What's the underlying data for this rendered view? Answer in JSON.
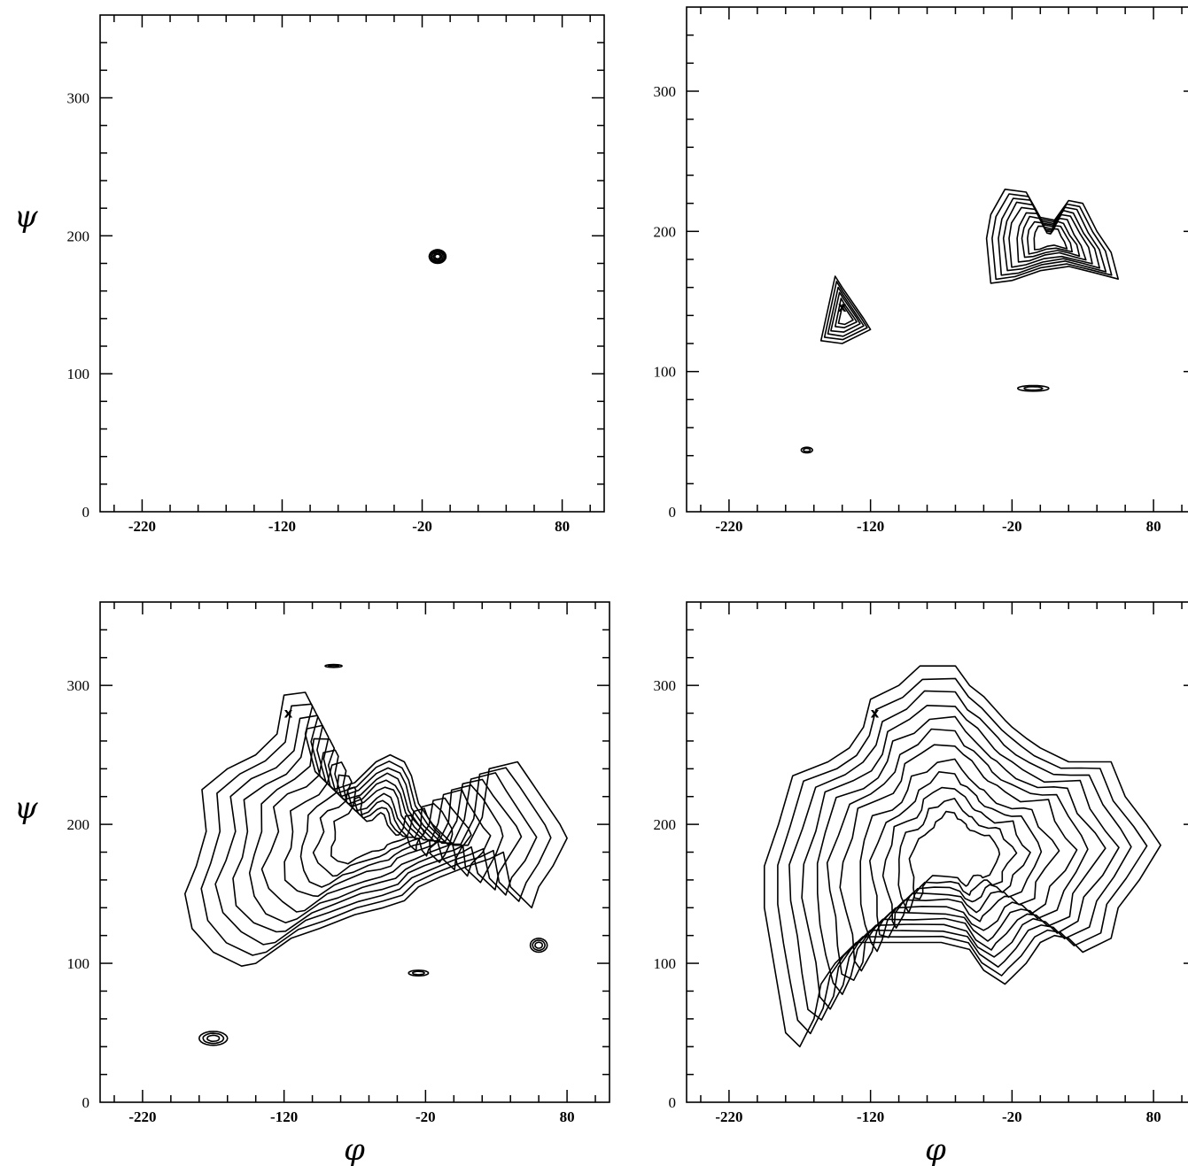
{
  "chart_data": [
    {
      "type": "contour",
      "panel": "top-left",
      "xlabel": "",
      "ylabel": "ψ",
      "xlim": [
        -250,
        110
      ],
      "ylim": [
        0,
        360
      ],
      "xticks": [
        -220,
        -120,
        -20,
        80
      ],
      "yticks": [
        0,
        100,
        200,
        300
      ],
      "grid": false,
      "markers": [],
      "regions": [
        {
          "name": "island-1",
          "levels": 5,
          "center": [
            -9,
            185
          ],
          "radius": [
            6,
            5
          ]
        }
      ]
    },
    {
      "type": "contour",
      "panel": "top-right",
      "xlabel": "",
      "ylabel": "",
      "xlim": [
        -250,
        110
      ],
      "ylim": [
        0,
        360
      ],
      "xticks": [
        -220,
        -120,
        -20,
        80
      ],
      "yticks": [
        0,
        100,
        200,
        300
      ],
      "grid": false,
      "markers": [
        {
          "symbol": "x",
          "phi": -140,
          "psi": 146
        }
      ],
      "regions": [
        {
          "name": "triangle-region",
          "levels": 6,
          "outline": [
            [
              -145,
              168
            ],
            [
              -155,
              122
            ],
            [
              -140,
              120
            ],
            [
              -120,
              130
            ],
            [
              -125,
              138
            ],
            [
              -140,
              160
            ]
          ]
        },
        {
          "name": "upper-basin",
          "levels": 9,
          "outline": [
            [
              -35,
              212
            ],
            [
              -25,
              230
            ],
            [
              -10,
              228
            ],
            [
              0,
              210
            ],
            [
              10,
              208
            ],
            [
              20,
              222
            ],
            [
              30,
              220
            ],
            [
              40,
              200
            ],
            [
              50,
              185
            ],
            [
              55,
              166
            ],
            [
              40,
              170
            ],
            [
              20,
              175
            ],
            [
              0,
              172
            ],
            [
              -20,
              165
            ],
            [
              -35,
              163
            ],
            [
              -38,
              195
            ]
          ]
        },
        {
          "name": "sliver-1",
          "levels": 2,
          "center": [
            -5,
            88
          ],
          "radius": [
            11,
            2
          ]
        },
        {
          "name": "sliver-2",
          "levels": 2,
          "center": [
            -165,
            44
          ],
          "radius": [
            4,
            2
          ]
        }
      ]
    },
    {
      "type": "contour",
      "panel": "bottom-left",
      "xlabel": "φ",
      "ylabel": "ψ",
      "xlim": [
        -250,
        110
      ],
      "ylim": [
        0,
        360
      ],
      "xticks": [
        -220,
        -120,
        -20,
        80
      ],
      "yticks": [
        0,
        100,
        200,
        300
      ],
      "grid": false,
      "markers": [
        {
          "symbol": "x",
          "phi": -117,
          "psi": 280
        }
      ],
      "regions": [
        {
          "name": "main-basin",
          "levels": 10,
          "outline": [
            [
              -120,
              293
            ],
            [
              -105,
              295
            ],
            [
              -100,
              285
            ],
            [
              -105,
              265
            ],
            [
              -98,
              238
            ],
            [
              -85,
              225
            ],
            [
              -70,
              230
            ],
            [
              -55,
              245
            ],
            [
              -45,
              250
            ],
            [
              -35,
              245
            ],
            [
              -30,
              235
            ],
            [
              -25,
              215
            ],
            [
              -15,
              200
            ],
            [
              0,
              185
            ],
            [
              10,
              185
            ],
            [
              20,
              205
            ],
            [
              25,
              240
            ],
            [
              45,
              245
            ],
            [
              55,
              230
            ],
            [
              75,
              200
            ],
            [
              80,
              190
            ],
            [
              70,
              170
            ],
            [
              60,
              155
            ],
            [
              55,
              140
            ],
            [
              40,
              155
            ],
            [
              35,
              180
            ],
            [
              25,
              175
            ],
            [
              10,
              170
            ],
            [
              -10,
              162
            ],
            [
              -25,
              155
            ],
            [
              -35,
              145
            ],
            [
              -50,
              140
            ],
            [
              -70,
              135
            ],
            [
              -95,
              125
            ],
            [
              -115,
              118
            ],
            [
              -140,
              100
            ],
            [
              -150,
              98
            ],
            [
              -170,
              108
            ],
            [
              -185,
              125
            ],
            [
              -190,
              150
            ],
            [
              -182,
              170
            ],
            [
              -175,
              195
            ],
            [
              -178,
              225
            ],
            [
              -160,
              240
            ],
            [
              -140,
              250
            ],
            [
              -125,
              265
            ]
          ]
        },
        {
          "name": "island-1",
          "levels": 3,
          "center": [
            60,
            113
          ],
          "radius": [
            6,
            5
          ]
        },
        {
          "name": "island-2",
          "levels": 3,
          "center": [
            -170,
            46
          ],
          "radius": [
            10,
            5
          ]
        },
        {
          "name": "sliver-1",
          "levels": 2,
          "center": [
            -25,
            93
          ],
          "radius": [
            7,
            2
          ]
        },
        {
          "name": "sliver-2",
          "levels": 2,
          "center": [
            -85,
            314
          ],
          "radius": [
            6,
            1
          ]
        }
      ]
    },
    {
      "type": "contour",
      "panel": "bottom-right",
      "xlabel": "φ",
      "ylabel": "",
      "xlim": [
        -250,
        110
      ],
      "ylim": [
        0,
        360
      ],
      "xticks": [
        -220,
        -120,
        -20,
        80
      ],
      "yticks": [
        0,
        100,
        200,
        300
      ],
      "grid": false,
      "markers": [
        {
          "symbol": "x",
          "phi": -117,
          "psi": 280
        }
      ],
      "regions": [
        {
          "name": "main-basin",
          "levels": 12,
          "outline": [
            [
              -120,
              290
            ],
            [
              -100,
              300
            ],
            [
              -85,
              314
            ],
            [
              -60,
              314
            ],
            [
              -50,
              300
            ],
            [
              -40,
              292
            ],
            [
              -25,
              275
            ],
            [
              -20,
              270
            ],
            [
              -10,
              262
            ],
            [
              0,
              255
            ],
            [
              20,
              245
            ],
            [
              35,
              245
            ],
            [
              50,
              245
            ],
            [
              60,
              220
            ],
            [
              75,
              200
            ],
            [
              85,
              185
            ],
            [
              70,
              160
            ],
            [
              55,
              140
            ],
            [
              50,
              118
            ],
            [
              30,
              108
            ],
            [
              20,
              118
            ],
            [
              10,
              120
            ],
            [
              0,
              115
            ],
            [
              -10,
              100
            ],
            [
              -20,
              90
            ],
            [
              -25,
              85
            ],
            [
              -40,
              95
            ],
            [
              -50,
              110
            ],
            [
              -70,
              115
            ],
            [
              -100,
              115
            ],
            [
              -130,
              115
            ],
            [
              -145,
              100
            ],
            [
              -155,
              85
            ],
            [
              -160,
              60
            ],
            [
              -170,
              40
            ],
            [
              -180,
              50
            ],
            [
              -185,
              80
            ],
            [
              -190,
              110
            ],
            [
              -195,
              140
            ],
            [
              -195,
              170
            ],
            [
              -185,
              200
            ],
            [
              -175,
              235
            ],
            [
              -150,
              245
            ],
            [
              -135,
              255
            ],
            [
              -125,
              270
            ]
          ]
        }
      ]
    }
  ],
  "labels": {
    "psi": "ψ",
    "phi": "φ"
  }
}
